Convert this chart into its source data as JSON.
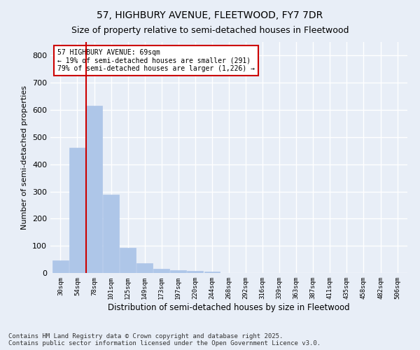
{
  "title": "57, HIGHBURY AVENUE, FLEETWOOD, FY7 7DR",
  "subtitle": "Size of property relative to semi-detached houses in Fleetwood",
  "xlabel": "Distribution of semi-detached houses by size in Fleetwood",
  "ylabel": "Number of semi-detached properties",
  "categories": [
    "30sqm",
    "54sqm",
    "78sqm",
    "101sqm",
    "125sqm",
    "149sqm",
    "173sqm",
    "197sqm",
    "220sqm",
    "244sqm",
    "268sqm",
    "292sqm",
    "316sqm",
    "339sqm",
    "363sqm",
    "387sqm",
    "411sqm",
    "435sqm",
    "458sqm",
    "482sqm",
    "506sqm"
  ],
  "values": [
    47,
    462,
    615,
    289,
    93,
    37,
    15,
    10,
    7,
    6,
    0,
    0,
    0,
    0,
    0,
    0,
    0,
    0,
    0,
    0,
    0
  ],
  "bar_color": "#aec6e8",
  "bar_edge_color": "#aec6e8",
  "highlight_line_color": "#cc0000",
  "annotation_text": "57 HIGHBURY AVENUE: 69sqm\n← 19% of semi-detached houses are smaller (291)\n79% of semi-detached houses are larger (1,226) →",
  "annotation_box_color": "#ffffff",
  "annotation_box_edge_color": "#cc0000",
  "ylim": [
    0,
    850
  ],
  "yticks": [
    0,
    100,
    200,
    300,
    400,
    500,
    600,
    700,
    800
  ],
  "background_color": "#e8eef7",
  "grid_color": "#ffffff",
  "title_fontsize": 10,
  "subtitle_fontsize": 9,
  "footer_text": "Contains HM Land Registry data © Crown copyright and database right 2025.\nContains public sector information licensed under the Open Government Licence v3.0.",
  "footer_fontsize": 6.5
}
